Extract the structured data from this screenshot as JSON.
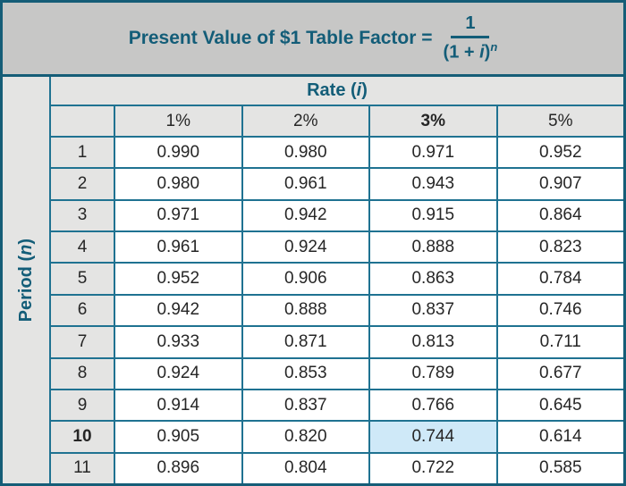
{
  "colors": {
    "teal_text": "#135D78",
    "outer_border": "#155D77",
    "grid_border": "#1F7291",
    "title_background": "#C7C7C6",
    "header_background": "#E4E4E3",
    "cell_background": "#FFFFFF",
    "highlight_background": "#CFE9F8",
    "body_text": "#262626"
  },
  "title": {
    "text_before": "Present Value of $1 Table Factor =",
    "fraction": {
      "numerator": "1",
      "denominator_open": "(1 + ",
      "denominator_var": "i",
      "denominator_close": ")",
      "exponent": "n"
    }
  },
  "table": {
    "rate_header": {
      "open": "Rate (",
      "var": "i",
      "close": ")"
    },
    "period_header": {
      "open": "Period (",
      "var": "n",
      "close": ")"
    },
    "columns": [
      "1%",
      "2%",
      "3%",
      "5%"
    ],
    "emphasized_column_index": 2,
    "bold_row_index": 9,
    "highlight": {
      "row_index": 9,
      "col_index": 2
    },
    "rows": [
      {
        "period": "1",
        "values": [
          "0.990",
          "0.980",
          "0.971",
          "0.952"
        ]
      },
      {
        "period": "2",
        "values": [
          "0.980",
          "0.961",
          "0.943",
          "0.907"
        ]
      },
      {
        "period": "3",
        "values": [
          "0.971",
          "0.942",
          "0.915",
          "0.864"
        ]
      },
      {
        "period": "4",
        "values": [
          "0.961",
          "0.924",
          "0.888",
          "0.823"
        ]
      },
      {
        "period": "5",
        "values": [
          "0.952",
          "0.906",
          "0.863",
          "0.784"
        ]
      },
      {
        "period": "6",
        "values": [
          "0.942",
          "0.888",
          "0.837",
          "0.746"
        ]
      },
      {
        "period": "7",
        "values": [
          "0.933",
          "0.871",
          "0.813",
          "0.711"
        ]
      },
      {
        "period": "8",
        "values": [
          "0.924",
          "0.853",
          "0.789",
          "0.677"
        ]
      },
      {
        "period": "9",
        "values": [
          "0.914",
          "0.837",
          "0.766",
          "0.645"
        ]
      },
      {
        "period": "10",
        "values": [
          "0.905",
          "0.820",
          "0.744",
          "0.614"
        ]
      },
      {
        "period": "11",
        "values": [
          "0.896",
          "0.804",
          "0.722",
          "0.585"
        ]
      }
    ]
  }
}
